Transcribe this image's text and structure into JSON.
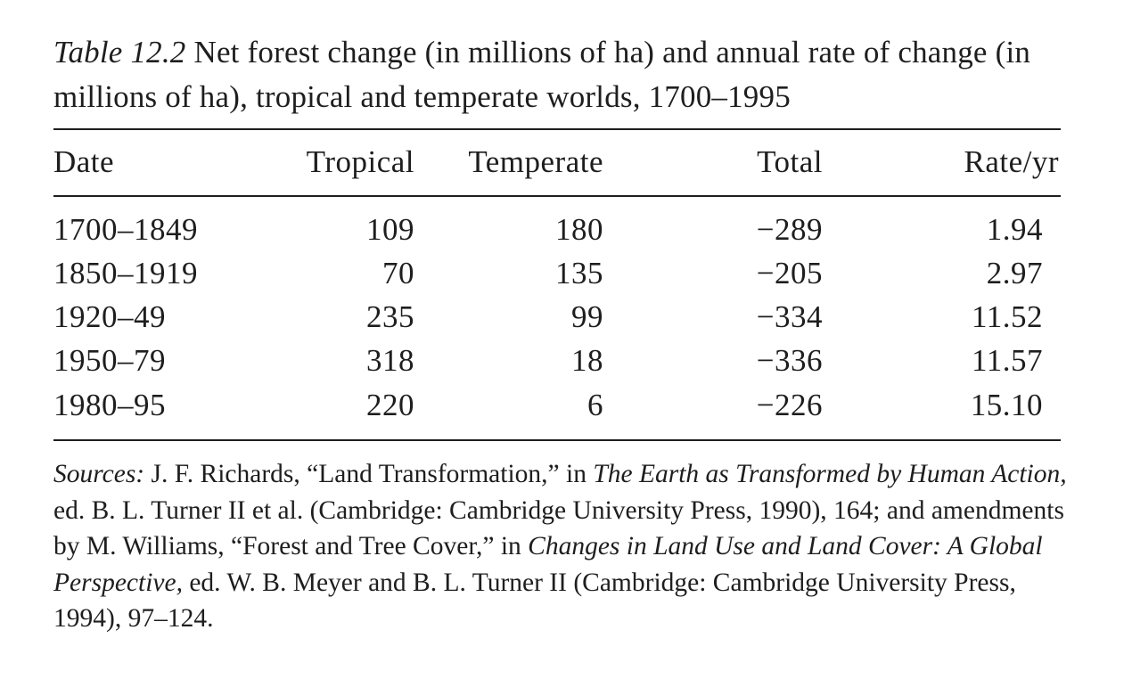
{
  "caption": {
    "label": "Table 12.2",
    "text": "Net forest change (in millions of ha) and annual rate of change (in millions of ha), tropical and temperate worlds, 1700–1995"
  },
  "table": {
    "headers": [
      "Date",
      "Tropical",
      "Temperate",
      "Total",
      "Rate/yr"
    ],
    "rows": [
      [
        "1700–1849",
        "109",
        "180",
        "−289",
        "1.94"
      ],
      [
        "1850–1919",
        "70",
        "135",
        "−205",
        "2.97"
      ],
      [
        "1920–49",
        "235",
        "99",
        "−334",
        "11.52"
      ],
      [
        "1950–79",
        "318",
        "18",
        "−336",
        "11.57"
      ],
      [
        "1980–95",
        "220",
        "6",
        "−226",
        "15.10"
      ]
    ]
  },
  "sources": {
    "s1": "Sources:",
    "s2": " J. F. Richards, “Land Transformation,” in ",
    "s3": "The Earth as Transformed by Human Action,",
    "s4": " ed. B. L. Turner II et al. (Cambridge: Cambridge University Press, 1990), 164; and amendments by M. Williams, “Forest and Tree Cover,” in ",
    "s5": "Changes in Land Use and Land Cover: A Global Perspective,",
    "s6": " ed. W. B. Meyer and B. L. Turner II (Cambridge: Cambridge University Press, 1994), 97–124."
  }
}
